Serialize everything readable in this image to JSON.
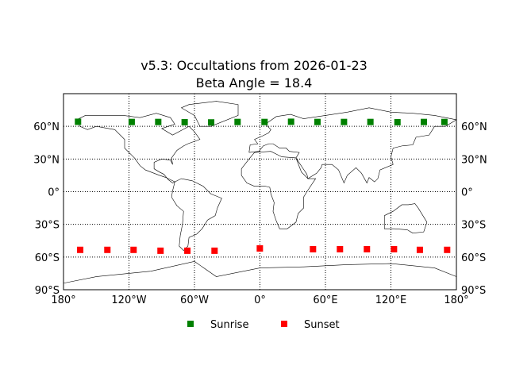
{
  "title_line1": "v5.3: Occultations from 2026-01-23",
  "title_line2": "Beta Angle = 18.4",
  "chart_data": {
    "type": "scatter",
    "projection": "cylindrical",
    "xlim": [
      -180,
      180
    ],
    "ylim": [
      -90,
      90
    ],
    "grid": true,
    "legend_placement": "bottom-center",
    "x_ticks": [
      -180,
      -120,
      -60,
      0,
      60,
      120,
      180
    ],
    "x_tick_labels": [
      "180°",
      "120°W",
      "60°W",
      "0°",
      "60°E",
      "120°E",
      "180°"
    ],
    "y_ticks": [
      60,
      30,
      0,
      -30,
      -60,
      -90
    ],
    "y_tick_labels": [
      "60°N",
      "30°N",
      "0°",
      "30°S",
      "60°S",
      "90°S"
    ],
    "series": [
      {
        "name": "Sunrise",
        "color": "#008000",
        "marker": "square",
        "lon": [
          -166.7,
          -117.5,
          -93.2,
          -69.0,
          -44.7,
          -20.5,
          4.2,
          28.5,
          52.7,
          77.0,
          101.2,
          126.0,
          150.2,
          169.0
        ],
        "lat": [
          64.2,
          64.0,
          64.0,
          63.8,
          63.6,
          64.0,
          64.0,
          64.2,
          64.0,
          64.0,
          64.0,
          63.8,
          64.0,
          64.0
        ]
      },
      {
        "name": "Sunset",
        "color": "#ff0000",
        "marker": "square",
        "lon": [
          -164.7,
          -139.8,
          -115.8,
          -91.1,
          -66.5,
          -41.6,
          -0.1,
          48.6,
          73.3,
          98.0,
          122.8,
          146.5,
          171.5
        ],
        "lat": [
          -53.4,
          -53.4,
          -53.4,
          -54.2,
          -54.2,
          -54.2,
          -52.1,
          -52.8,
          -52.8,
          -52.8,
          -52.8,
          -53.4,
          -53.4
        ]
      }
    ]
  }
}
